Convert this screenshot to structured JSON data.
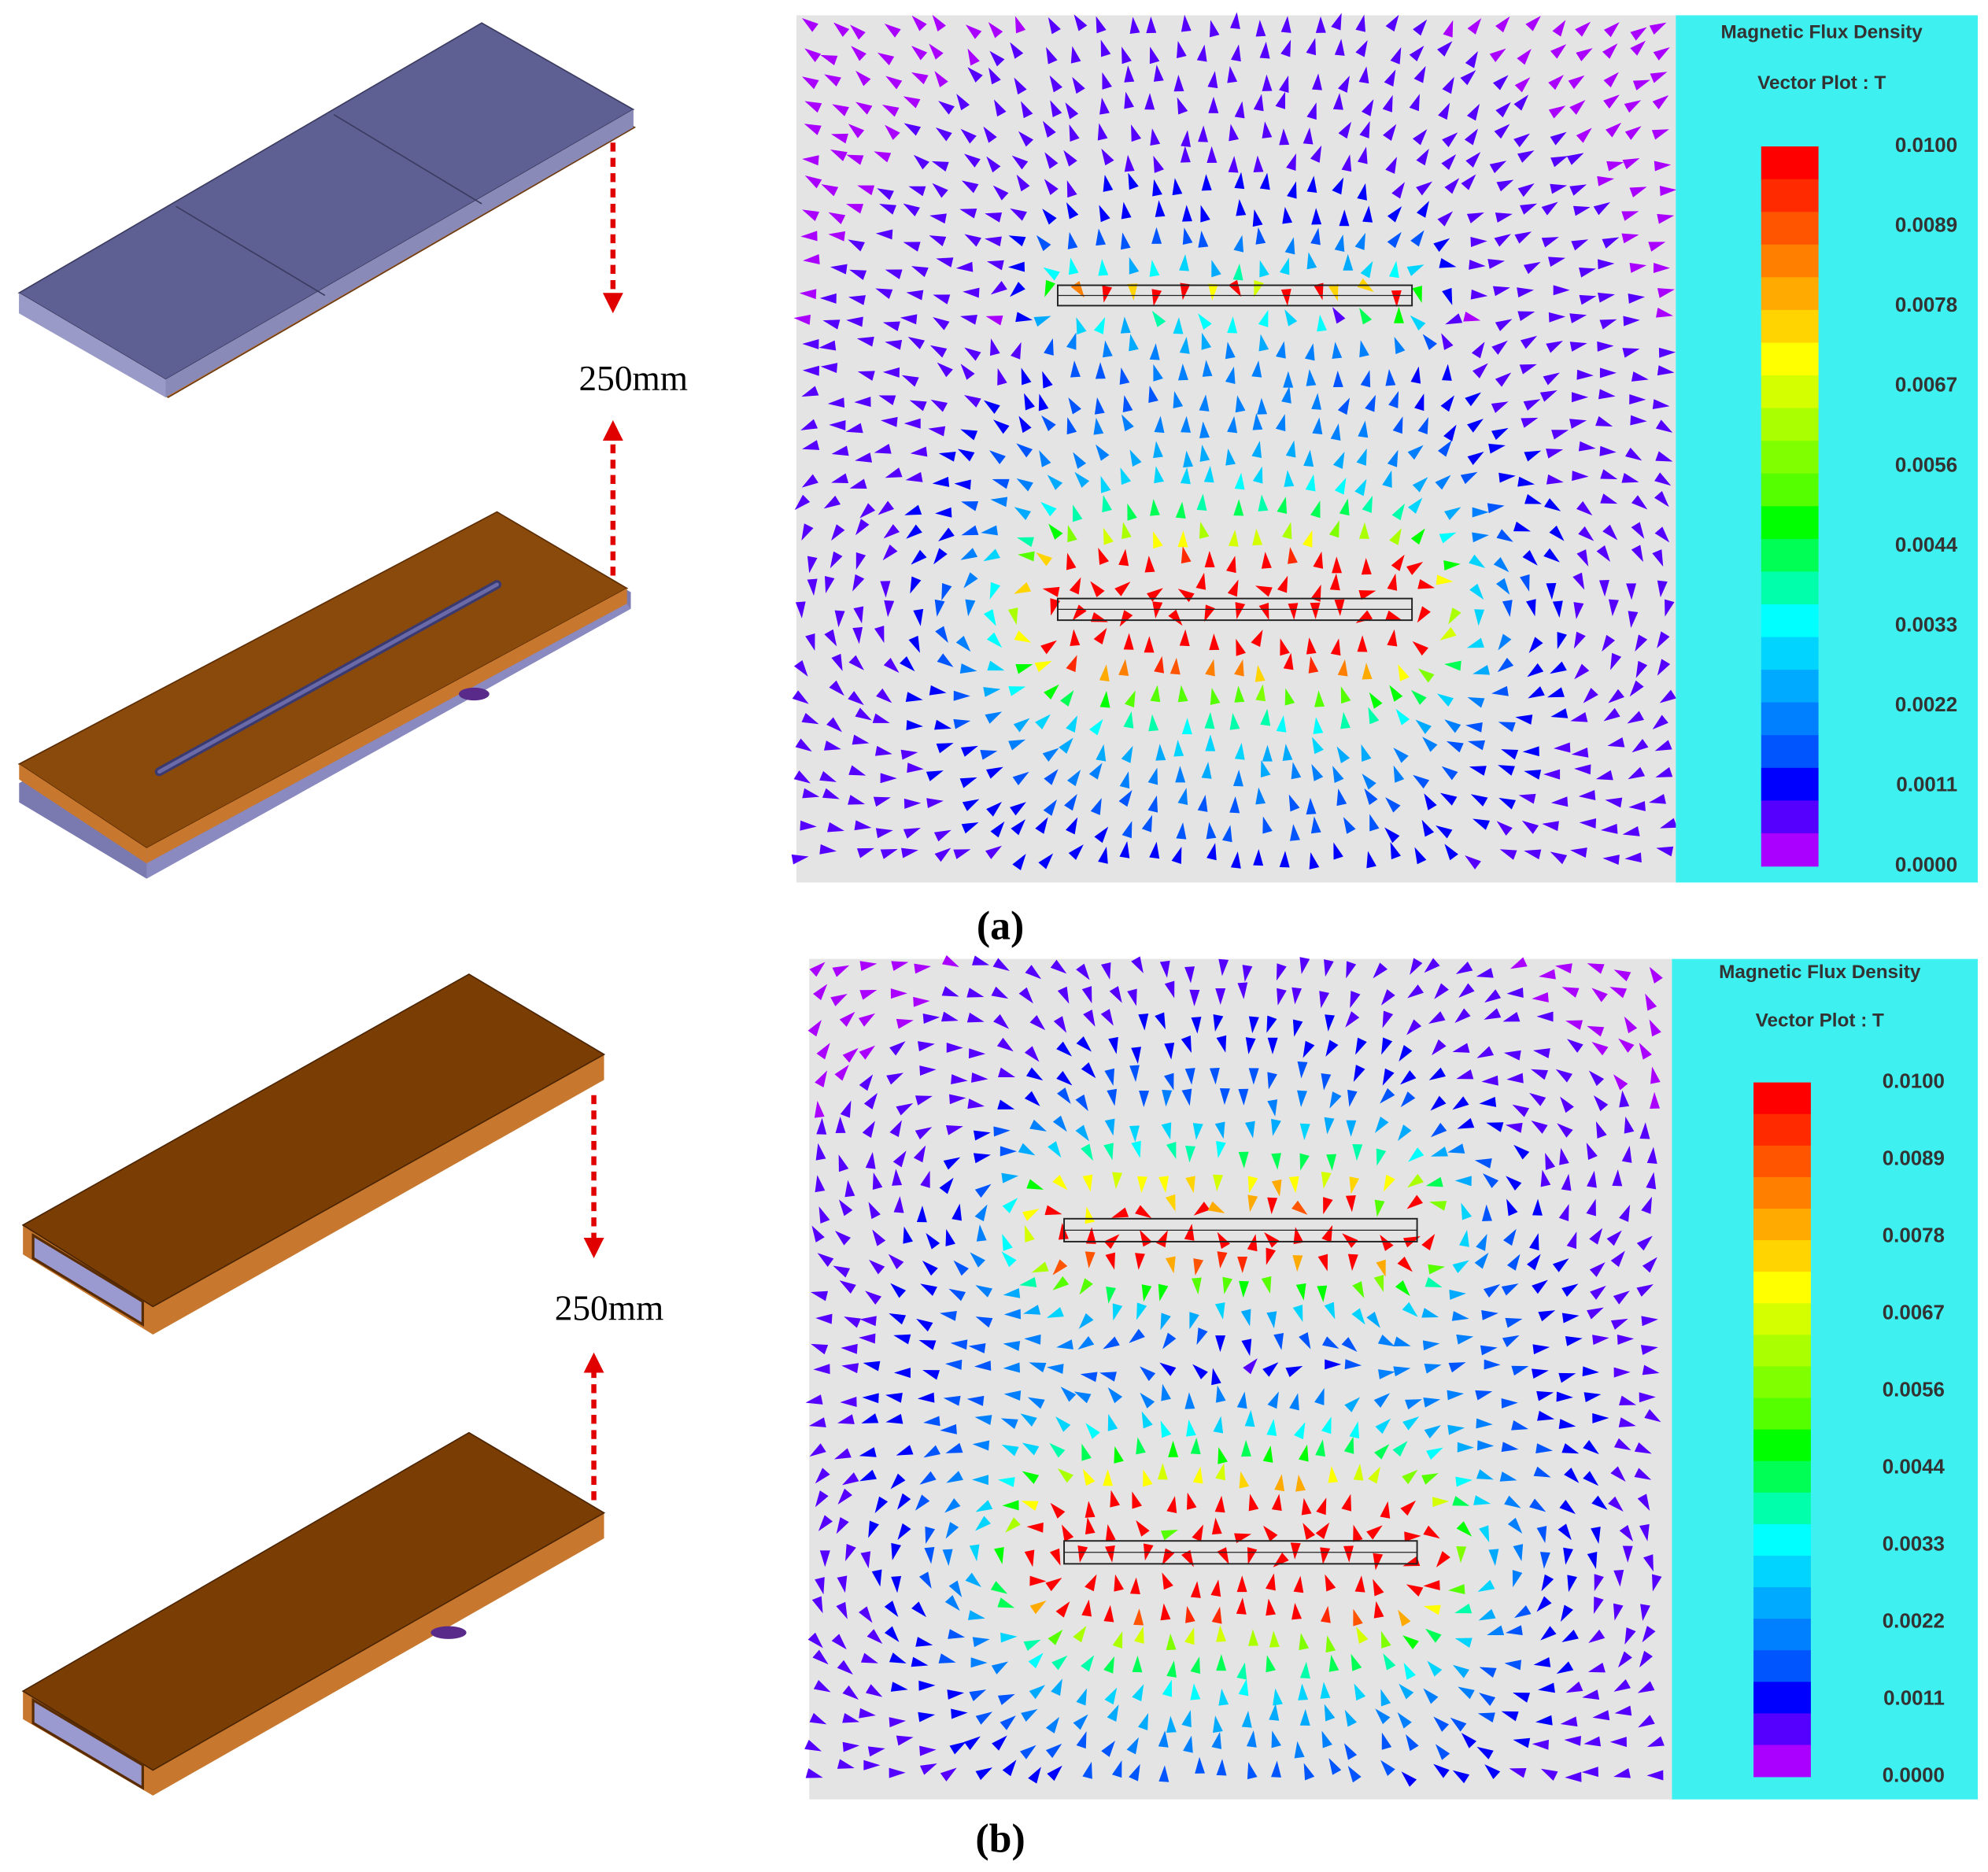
{
  "panels": [
    {
      "label": "(a)",
      "distance": "250mm",
      "legend": {
        "title": "Magnetic Flux Density",
        "subtitle": "Vector Plot : T",
        "ticks": [
          "0.0100",
          "0.0089",
          "0.0078",
          "0.0067",
          "0.0056",
          "0.0044",
          "0.0033",
          "0.0022",
          "0.0011",
          "0.0000"
        ]
      }
    },
    {
      "label": "(b)",
      "distance": "250mm",
      "legend": {
        "title": "Magnetic Flux Density",
        "subtitle": "Vector Plot : T",
        "ticks": [
          "0.0100",
          "0.0089",
          "0.0078",
          "0.0067",
          "0.0056",
          "0.0044",
          "0.0033",
          "0.0022",
          "0.0011",
          "0.0000"
        ]
      }
    }
  ]
}
